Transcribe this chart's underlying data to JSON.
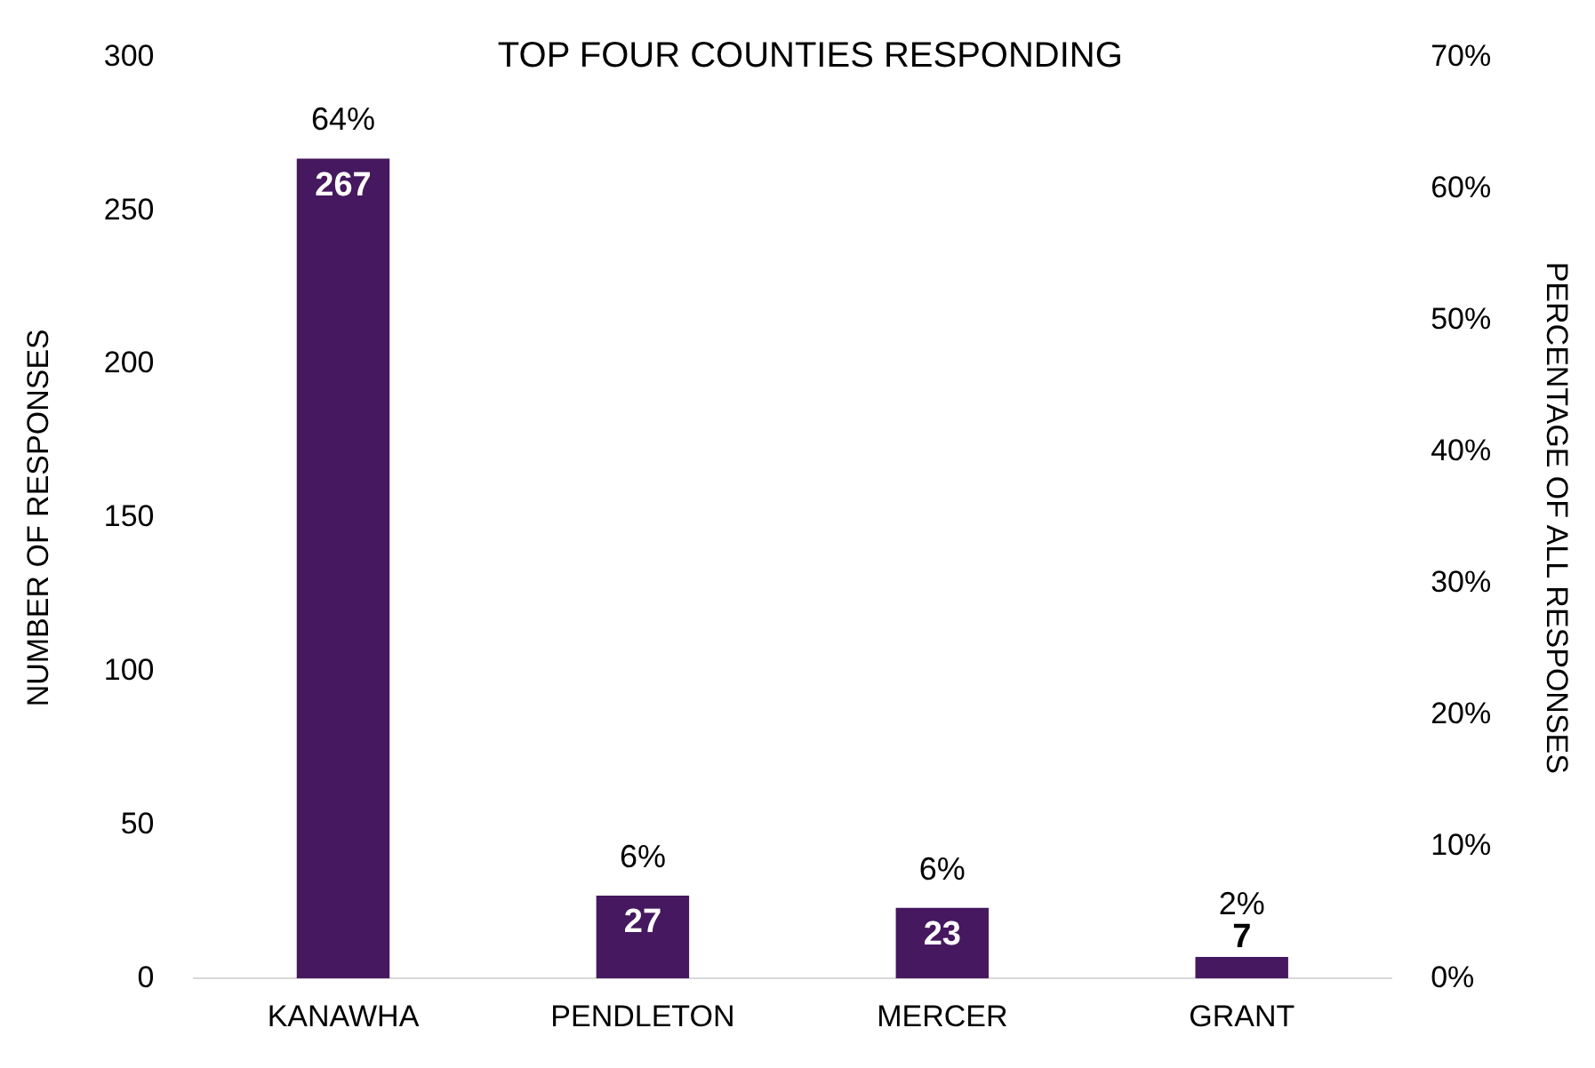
{
  "chart_data": {
    "type": "bar",
    "title": "TOP FOUR COUNTIES RESPONDING",
    "ylabel": "NUMBER OF RESPONSES",
    "y2label": "PERCENTAGE OF ALL RESPONSES",
    "categories": [
      "KANAWHA",
      "PENDLETON",
      "MERCER",
      "GRANT"
    ],
    "values": [
      267,
      27,
      23,
      7
    ],
    "color": "#46185f",
    "data_labels": true,
    "ylim": [
      0,
      300
    ],
    "yticks": [
      0,
      50,
      100,
      150,
      200,
      250,
      300
    ],
    "y2lim": [
      0,
      70
    ],
    "y2ticks": [
      {
        "value": 0,
        "label": "0%"
      },
      {
        "value": 10,
        "label": "10%"
      },
      {
        "value": 20,
        "label": "20%"
      },
      {
        "value": 30,
        "label": "30%"
      },
      {
        "value": 40,
        "label": "40%"
      },
      {
        "value": 50,
        "label": "50%"
      },
      {
        "value": 60,
        "label": "60%"
      },
      {
        "value": 70,
        "label": "70%"
      }
    ],
    "annotations": [
      {
        "text": "64%",
        "x": "KANAWHA",
        "y": 267
      },
      {
        "text": "6%",
        "x": "PENDLETON",
        "y": 27
      },
      {
        "text": "6%",
        "x": "MERCER",
        "y": 23
      },
      {
        "text": "2%",
        "x": "GRANT",
        "y": 7
      }
    ],
    "grid": false,
    "legend": false
  }
}
